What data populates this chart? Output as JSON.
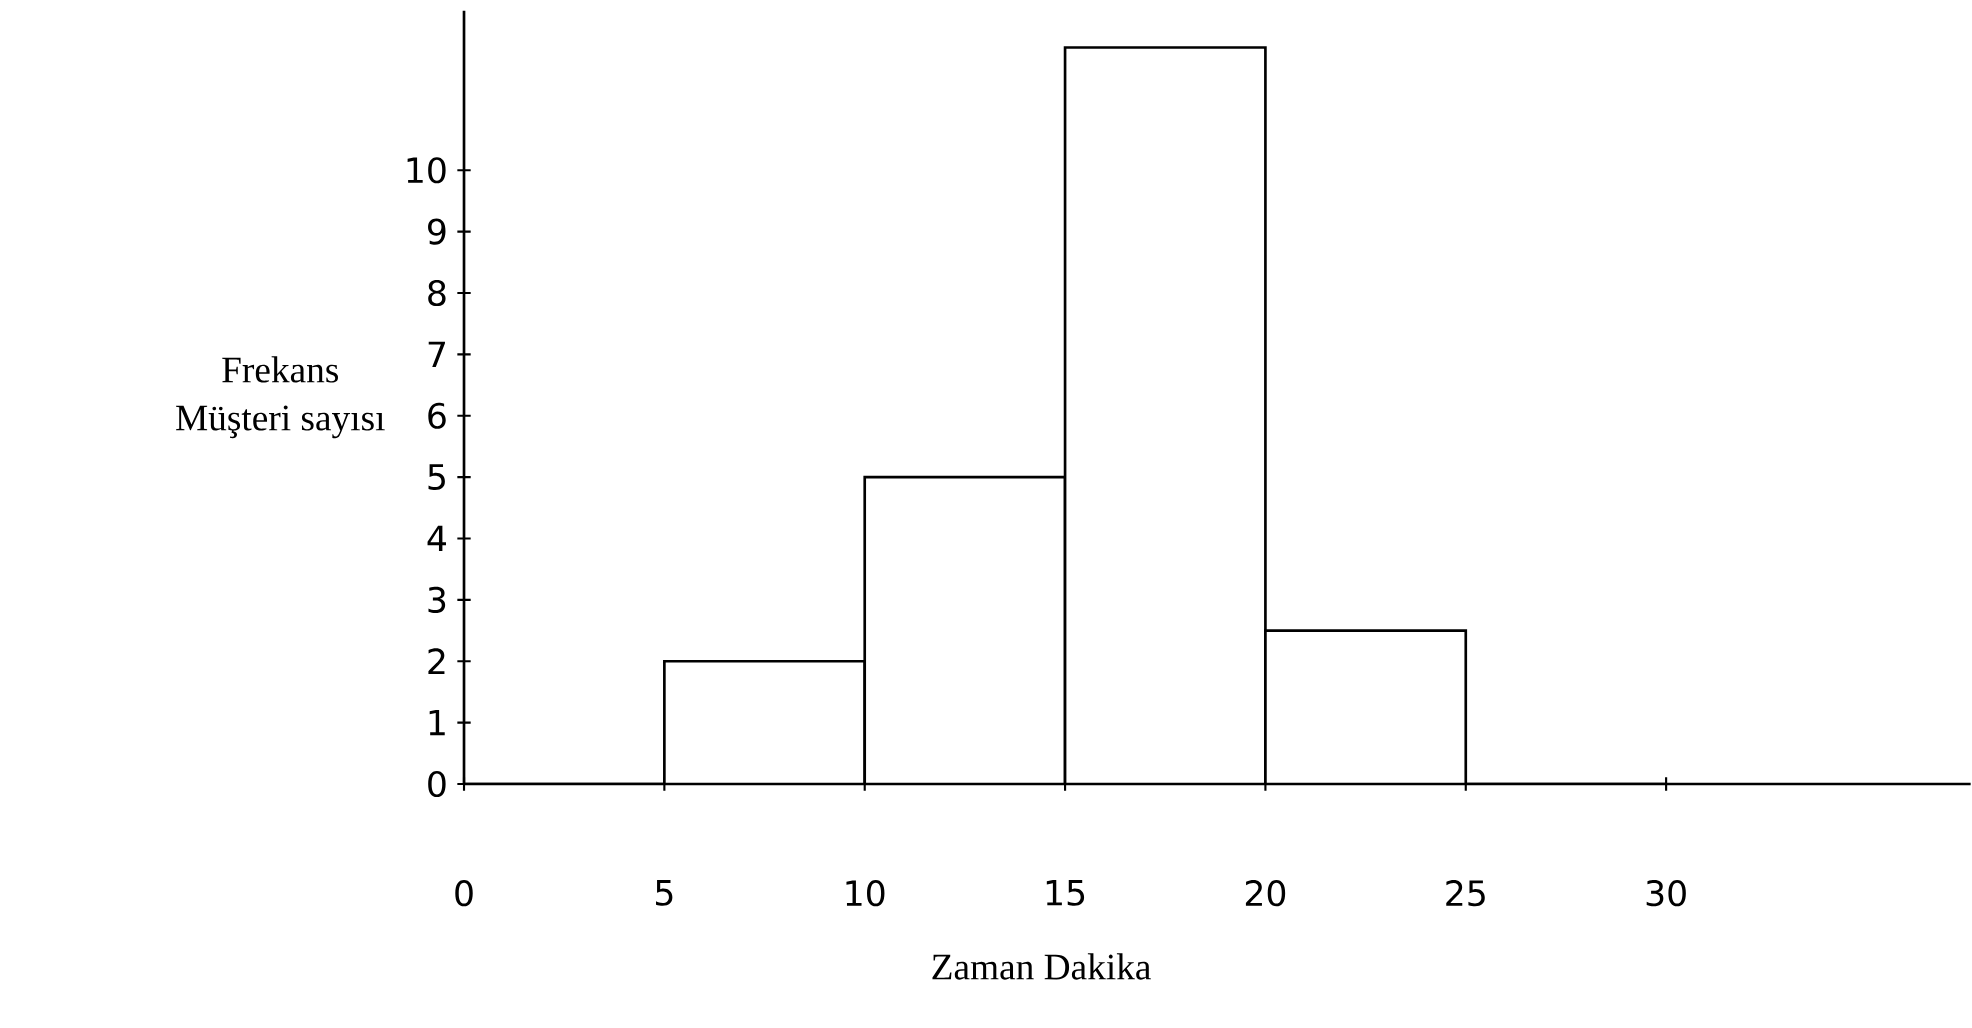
{
  "chart_data": {
    "type": "histogram",
    "xlabel": "Zaman Dakika",
    "ylabel": "Frekans\nMüşteri sayısı",
    "bins": [
      0,
      5,
      10,
      15,
      20,
      25,
      30
    ],
    "values": [
      0,
      2,
      5,
      12,
      2.5,
      0
    ],
    "color": "#ffffff",
    "xlim": [
      0,
      37.6
    ],
    "ylim": [
      0,
      12.6
    ],
    "xticks": [
      0,
      5,
      10,
      15,
      20,
      25,
      30
    ],
    "yticks": [
      0,
      1,
      2,
      3,
      4,
      5,
      6,
      7,
      8,
      9,
      10
    ]
  }
}
